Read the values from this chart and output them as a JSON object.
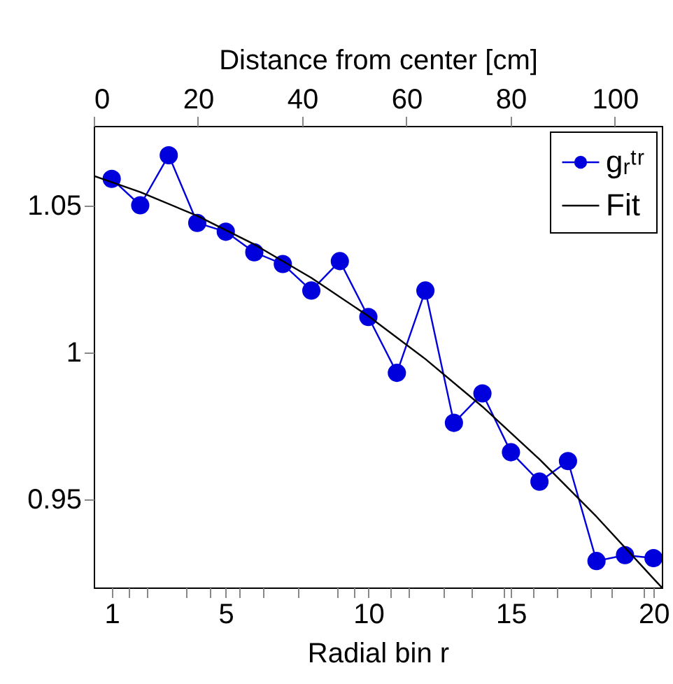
{
  "chart_data": {
    "type": "line",
    "xlabel": "Radial bin r",
    "x2label": "Distance from center [cm]",
    "xlim": [
      0.37,
      20.29
    ],
    "x2lim": [
      0,
      109
    ],
    "xticks": [
      1,
      {
        "value": 1.6,
        "label": null
      },
      {
        "value": 2.25,
        "label": null
      },
      {
        "value": 3.6,
        "label": null
      },
      {
        "value": 4.45,
        "label": null
      },
      5,
      {
        "value": 5.45,
        "label": null
      },
      {
        "value": 6.3,
        "label": null
      },
      {
        "value": 7.55,
        "label": null
      },
      {
        "value": 8.9,
        "label": null
      },
      {
        "value": 9.5,
        "label": null
      },
      10,
      {
        "value": 10.75,
        "label": null
      },
      {
        "value": 11.4,
        "label": null
      },
      {
        "value": 12.65,
        "label": null
      },
      {
        "value": 13.6,
        "label": null
      },
      {
        "value": 14.75,
        "label": null
      },
      15,
      {
        "value": 15.8,
        "label": null
      },
      {
        "value": 16.6,
        "label": null
      },
      {
        "value": 17.8,
        "label": null
      },
      {
        "value": 18.5,
        "label": null
      },
      {
        "value": 19.65,
        "label": null
      },
      20
    ],
    "x2ticks": [
      0,
      20,
      40,
      60,
      80,
      100
    ],
    "ylim": [
      0.92,
      1.077
    ],
    "yticks": [
      0.95,
      1,
      1.05
    ],
    "grid": false,
    "legend": "top right",
    "series": [
      {
        "name": "gᵣᵗʳ",
        "color": "#0000dd",
        "marker": "circle",
        "x": [
          1,
          2,
          3,
          4,
          5,
          6,
          7,
          8,
          9,
          10,
          11,
          12,
          13,
          14,
          15,
          16,
          17,
          18,
          19,
          20
        ],
        "values": [
          1.059,
          1.05,
          1.067,
          1.044,
          1.041,
          1.034,
          1.03,
          1.021,
          1.031,
          1.012,
          0.993,
          1.021,
          0.976,
          0.986,
          0.966,
          0.956,
          0.963,
          0.929,
          0.931,
          0.93
        ]
      },
      {
        "name": "Fit",
        "color": "#000000",
        "marker": "none",
        "x": [
          0.37,
          2,
          4,
          6,
          8,
          10,
          12,
          14,
          16,
          18,
          20,
          20.29
        ],
        "values": [
          1.06,
          1.0545,
          1.0464,
          1.0367,
          1.0253,
          1.0123,
          0.9977,
          0.9815,
          0.9636,
          0.9441,
          0.923,
          0.92
        ]
      }
    ]
  }
}
